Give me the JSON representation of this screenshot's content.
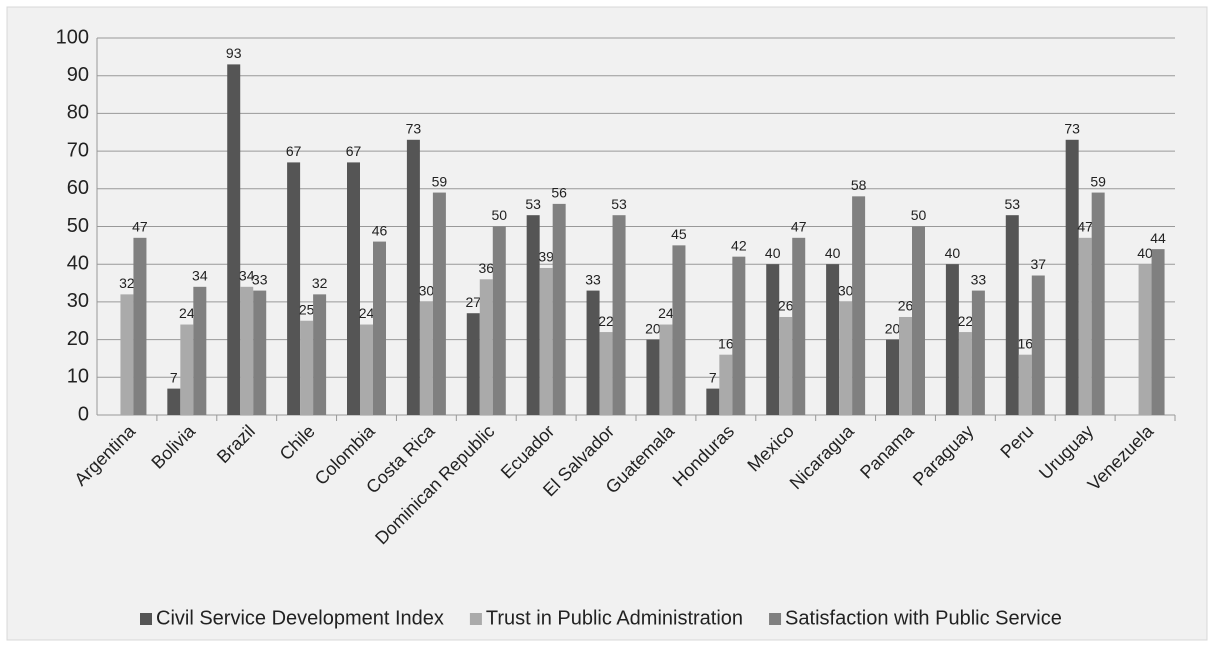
{
  "chart_data": {
    "type": "bar",
    "categories": [
      "Argentina",
      "Bolivia",
      "Brazil",
      "Chile",
      "Colombia",
      "Costa Rica",
      "Dominican Republic",
      "Ecuador",
      "El Salvador",
      "Guatemala",
      "Honduras",
      "Mexico",
      "Nicaragua",
      "Panama",
      "Paraguay",
      "Peru",
      "Uruguay",
      "Venezuela"
    ],
    "series": [
      {
        "name": "Civil Service Development Index",
        "color": "#555555",
        "values": [
          null,
          7,
          93,
          67,
          67,
          73,
          27,
          53,
          33,
          20,
          7,
          40,
          40,
          20,
          40,
          53,
          73,
          null
        ]
      },
      {
        "name": "Trust in Public Administration",
        "color": "#aaaaaa",
        "values": [
          32,
          24,
          34,
          25,
          24,
          30,
          36,
          39,
          22,
          24,
          16,
          26,
          30,
          26,
          22,
          16,
          47,
          40
        ]
      },
      {
        "name": "Satisfaction with Public Service",
        "color": "#808080",
        "values": [
          47,
          34,
          33,
          32,
          46,
          59,
          50,
          56,
          53,
          45,
          42,
          47,
          58,
          50,
          33,
          37,
          59,
          44
        ]
      }
    ],
    "ylim": [
      0,
      100
    ],
    "yticks": [
      0,
      10,
      20,
      30,
      40,
      50,
      60,
      70,
      80,
      90,
      100
    ],
    "grid": true,
    "legend": "bottom"
  }
}
